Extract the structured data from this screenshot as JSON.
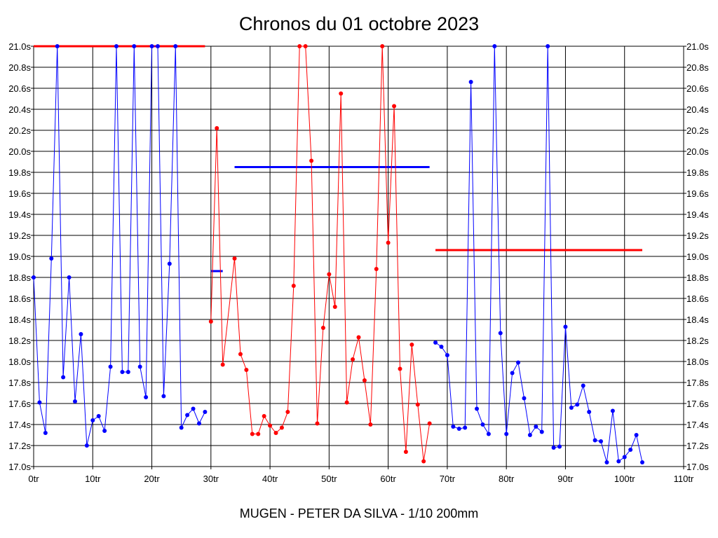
{
  "chart_data": {
    "type": "line",
    "title": "Chronos du 01 octobre 2023",
    "xlabel": "MUGEN - PETER DA SILVA - 1/10 200mm",
    "ylabel": "",
    "xlim": [
      0,
      110
    ],
    "ylim": [
      17.0,
      21.0
    ],
    "x_ticks": [
      0,
      10,
      20,
      30,
      40,
      50,
      60,
      70,
      80,
      90,
      100,
      110
    ],
    "x_tick_labels": [
      "0tr",
      "10tr",
      "20tr",
      "30tr",
      "40tr",
      "50tr",
      "60tr",
      "70tr",
      "80tr",
      "90tr",
      "100tr",
      "110tr"
    ],
    "y_ticks": [
      17.0,
      17.2,
      17.4,
      17.6,
      17.8,
      18.0,
      18.2,
      18.4,
      18.6,
      18.8,
      19.0,
      19.2,
      19.4,
      19.6,
      19.8,
      20.0,
      20.2,
      20.4,
      20.6,
      20.8,
      21.0
    ],
    "y_tick_labels": [
      "17.0s",
      "17.2s",
      "17.4s",
      "17.6s",
      "17.8s",
      "18.0s",
      "18.2s",
      "18.4s",
      "18.6s",
      "18.8s",
      "19.0s",
      "19.2s",
      "19.4s",
      "19.6s",
      "19.8s",
      "20.0s",
      "20.2s",
      "20.4s",
      "20.6s",
      "20.8s",
      "21.0s"
    ],
    "grid": true,
    "y_axis_both_sides": true,
    "series": [
      {
        "color": "#0000ff",
        "points": [
          [
            0,
            18.8
          ],
          [
            1,
            17.61
          ],
          [
            2,
            17.32
          ],
          [
            3,
            18.98
          ],
          [
            4,
            21.0
          ],
          [
            5,
            17.85
          ],
          [
            6,
            18.8
          ],
          [
            7,
            17.62
          ],
          [
            8,
            18.26
          ],
          [
            9,
            17.2
          ],
          [
            10,
            17.44
          ],
          [
            11,
            17.48
          ],
          [
            12,
            17.34
          ],
          [
            13,
            17.95
          ],
          [
            14,
            21.0
          ],
          [
            15,
            17.9
          ],
          [
            16,
            17.9
          ],
          [
            17,
            21.0
          ],
          [
            18,
            17.95
          ],
          [
            19,
            17.66
          ],
          [
            20,
            21.0
          ],
          [
            21,
            21.0
          ],
          [
            22,
            17.67
          ],
          [
            23,
            18.93
          ],
          [
            24,
            21.0
          ],
          [
            25,
            17.37
          ],
          [
            26,
            17.49
          ],
          [
            27,
            17.55
          ],
          [
            28,
            17.41
          ],
          [
            29,
            17.52
          ]
        ]
      },
      {
        "color": "#ff0000",
        "points": [
          [
            30,
            18.38
          ],
          [
            31,
            20.22
          ],
          [
            32,
            17.97
          ],
          [
            34,
            18.98
          ],
          [
            35,
            18.07
          ],
          [
            36,
            17.92
          ],
          [
            37,
            17.31
          ],
          [
            38,
            17.31
          ],
          [
            39,
            17.48
          ],
          [
            40,
            17.39
          ],
          [
            41,
            17.32
          ],
          [
            42,
            17.37
          ],
          [
            43,
            17.52
          ],
          [
            44,
            18.72
          ],
          [
            45,
            21.0
          ],
          [
            46,
            21.0
          ],
          [
            47,
            19.91
          ],
          [
            48,
            17.41
          ],
          [
            49,
            18.32
          ],
          [
            50,
            18.83
          ],
          [
            51,
            18.52
          ],
          [
            52,
            20.55
          ],
          [
            53,
            17.61
          ],
          [
            54,
            18.02
          ],
          [
            55,
            18.23
          ],
          [
            56,
            17.82
          ],
          [
            57,
            17.4
          ],
          [
            58,
            18.88
          ],
          [
            59,
            21.0
          ],
          [
            60,
            19.13
          ],
          [
            61,
            20.43
          ],
          [
            62,
            17.93
          ],
          [
            63,
            17.14
          ],
          [
            64,
            18.16
          ],
          [
            65,
            17.59
          ],
          [
            66,
            17.05
          ],
          [
            67,
            17.41
          ]
        ]
      },
      {
        "color": "#0000ff",
        "points": [
          [
            68,
            18.18
          ],
          [
            69,
            18.14
          ],
          [
            70,
            18.06
          ],
          [
            71,
            17.38
          ],
          [
            72,
            17.36
          ],
          [
            73,
            17.37
          ],
          [
            74,
            20.66
          ],
          [
            75,
            17.55
          ],
          [
            76,
            17.4
          ],
          [
            77,
            17.31
          ],
          [
            78,
            21.0
          ],
          [
            79,
            18.27
          ],
          [
            80,
            17.31
          ],
          [
            81,
            17.89
          ],
          [
            82,
            17.99
          ],
          [
            83,
            17.65
          ],
          [
            84,
            17.3
          ],
          [
            85,
            17.38
          ],
          [
            86,
            17.33
          ],
          [
            87,
            21.0
          ],
          [
            88,
            17.18
          ],
          [
            89,
            17.19
          ],
          [
            90,
            18.33
          ],
          [
            91,
            17.56
          ],
          [
            92,
            17.59
          ],
          [
            93,
            17.77
          ],
          [
            94,
            17.52
          ],
          [
            95,
            17.25
          ],
          [
            96,
            17.24
          ],
          [
            97,
            17.04
          ],
          [
            98,
            17.53
          ],
          [
            99,
            17.05
          ],
          [
            100,
            17.09
          ],
          [
            101,
            17.16
          ],
          [
            102,
            17.3
          ],
          [
            103,
            17.04
          ]
        ]
      }
    ],
    "average_lines": [
      {
        "color": "#ff0000",
        "x_start": 0,
        "x_end": 29,
        "y": 21.0
      },
      {
        "color": "#0000ff",
        "x_start": 30,
        "x_end": 32,
        "y": 18.86
      },
      {
        "color": "#0000ff",
        "x_start": 34,
        "x_end": 67,
        "y": 19.85
      },
      {
        "color": "#ff0000",
        "x_start": 68,
        "x_end": 103,
        "y": 19.06
      }
    ]
  }
}
